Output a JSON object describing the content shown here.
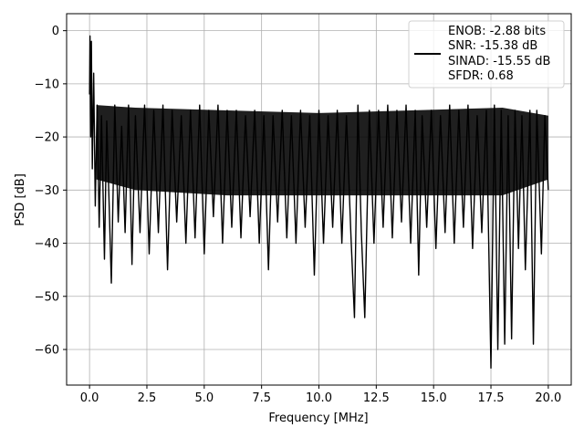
{
  "chart_data": {
    "type": "line",
    "xlabel": "Frequency [MHz]",
    "ylabel": "PSD [dB]",
    "xlim": [
      -1.0,
      21.0
    ],
    "ylim": [
      -66.7,
      3.2
    ],
    "xticks": [
      0.0,
      2.5,
      5.0,
      7.5,
      10.0,
      12.5,
      15.0,
      17.5,
      20.0
    ],
    "xtick_labels": [
      "0.0",
      "2.5",
      "5.0",
      "7.5",
      "10.0",
      "12.5",
      "15.0",
      "17.5",
      "20.0"
    ],
    "yticks": [
      0,
      -10,
      -20,
      -30,
      -40,
      -50,
      -60
    ],
    "ytick_labels": [
      "0",
      "−10",
      "−20",
      "−30",
      "−40",
      "−50",
      "−60"
    ],
    "grid": true,
    "legend_position": "top-right",
    "line_color": "#000000",
    "series": [
      {
        "color": "#000000",
        "x": [
          0.0,
          0.02,
          0.05,
          0.08,
          0.12,
          0.18,
          0.25,
          0.33,
          0.42,
          0.52,
          0.65,
          0.75,
          0.85,
          0.95,
          1.1,
          1.25,
          1.4,
          1.55,
          1.7,
          1.85,
          2.0,
          2.2,
          2.4,
          2.6,
          2.8,
          3.0,
          3.2,
          3.4,
          3.6,
          3.8,
          4.0,
          4.2,
          4.4,
          4.6,
          4.8,
          5.0,
          5.2,
          5.4,
          5.6,
          5.8,
          6.0,
          6.2,
          6.4,
          6.6,
          6.8,
          7.0,
          7.2,
          7.4,
          7.6,
          7.8,
          8.0,
          8.2,
          8.4,
          8.6,
          8.8,
          9.0,
          9.2,
          9.4,
          9.6,
          9.8,
          10.0,
          10.2,
          10.4,
          10.6,
          10.8,
          11.0,
          11.2,
          11.4,
          11.55,
          11.7,
          11.85,
          12.0,
          12.2,
          12.4,
          12.6,
          12.8,
          13.0,
          13.2,
          13.4,
          13.6,
          13.8,
          14.0,
          14.2,
          14.35,
          14.5,
          14.7,
          14.9,
          15.1,
          15.3,
          15.5,
          15.7,
          15.9,
          16.1,
          16.3,
          16.5,
          16.7,
          16.9,
          17.1,
          17.3,
          17.5,
          17.65,
          17.8,
          17.95,
          18.1,
          18.25,
          18.4,
          18.55,
          18.7,
          18.85,
          19.0,
          19.2,
          19.35,
          19.5,
          19.7,
          19.85,
          20.0
        ],
        "y": [
          -12.0,
          -1.0,
          -20.0,
          -2.0,
          -26.0,
          -8.0,
          -33.0,
          -14.0,
          -37.0,
          -16.0,
          -43.0,
          -17.0,
          -32.0,
          -47.5,
          -14.0,
          -36.0,
          -18.0,
          -38.0,
          -14.0,
          -44.0,
          -16.0,
          -38.0,
          -14.0,
          -42.0,
          -15.0,
          -38.0,
          -14.0,
          -45.0,
          -15.0,
          -36.0,
          -16.0,
          -40.0,
          -15.0,
          -39.0,
          -14.0,
          -42.0,
          -15.0,
          -35.0,
          -14.0,
          -40.0,
          -15.0,
          -37.0,
          -15.0,
          -39.0,
          -16.0,
          -35.0,
          -15.0,
          -40.0,
          -16.0,
          -45.0,
          -16.0,
          -36.0,
          -15.0,
          -39.0,
          -16.0,
          -40.0,
          -15.0,
          -37.0,
          -16.0,
          -46.0,
          -15.0,
          -40.0,
          -16.0,
          -37.0,
          -15.0,
          -40.0,
          -16.0,
          -39.0,
          -54.0,
          -14.0,
          -38.0,
          -54.0,
          -15.0,
          -40.0,
          -15.0,
          -37.0,
          -14.0,
          -39.0,
          -15.0,
          -36.0,
          -14.0,
          -40.0,
          -15.0,
          -46.0,
          -16.0,
          -37.0,
          -15.0,
          -41.0,
          -16.0,
          -38.0,
          -14.0,
          -40.0,
          -15.0,
          -37.0,
          -14.0,
          -41.0,
          -16.0,
          -38.0,
          -15.0,
          -63.5,
          -14.0,
          -60.0,
          -15.0,
          -59.0,
          -16.0,
          -58.0,
          -15.0,
          -41.0,
          -16.0,
          -45.0,
          -15.0,
          -59.0,
          -15.0,
          -42.0,
          -16.0,
          -30.0
        ]
      }
    ],
    "legend": {
      "lines": [
        "ENOB: -2.88 bits",
        "SNR: -15.38 dB",
        "SINAD: -15.55 dB",
        "SFDR: 0.68"
      ]
    }
  }
}
